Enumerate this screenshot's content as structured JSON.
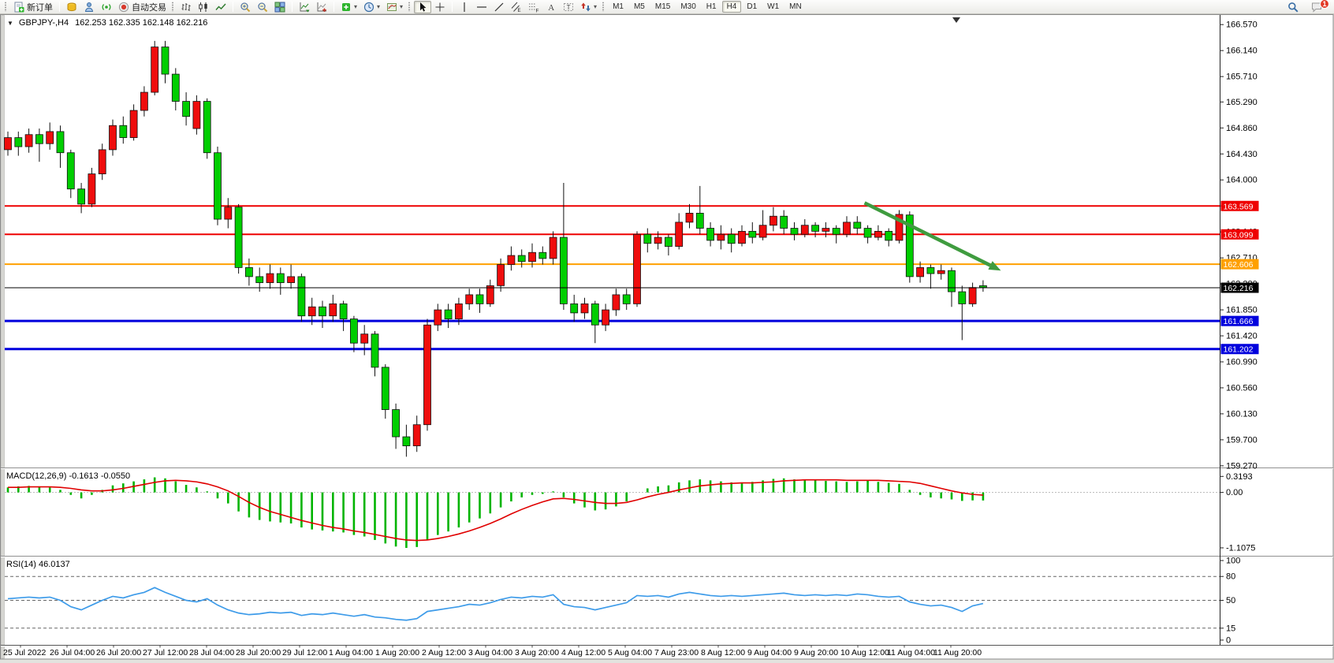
{
  "toolbar": {
    "groups": [
      {
        "grip": true,
        "items": [
          {
            "icon": "new-order-icon",
            "name": "new-order-button",
            "label": "新订单"
          }
        ]
      },
      {
        "items": [
          {
            "icon": "market-watch-icon",
            "name": "market-watch-button"
          },
          {
            "icon": "navigator-icon",
            "name": "navigator-button"
          },
          {
            "icon": "signals-icon",
            "name": "signals-button"
          },
          {
            "icon": "auto-trading-icon",
            "name": "auto-trading-button",
            "label": "自动交易"
          }
        ]
      },
      {
        "grip": true,
        "items": [
          {
            "icon": "bar-chart-icon",
            "name": "bar-chart-button"
          },
          {
            "icon": "candlestick-icon",
            "name": "candlestick-chart-button"
          },
          {
            "icon": "line-chart-icon",
            "name": "line-chart-button"
          }
        ]
      },
      {
        "items": [
          {
            "icon": "zoom-in-icon",
            "name": "zoom-in-button"
          },
          {
            "icon": "zoom-out-icon",
            "name": "zoom-out-button"
          },
          {
            "icon": "tile-windows-icon",
            "name": "tile-windows-button"
          }
        ]
      },
      {
        "items": [
          {
            "icon": "indicators-icon",
            "name": "indicators-button"
          },
          {
            "icon": "objects-icon",
            "name": "objects-list-button"
          }
        ]
      },
      {
        "items": [
          {
            "icon": "add-indicator-icon",
            "name": "add-indicator-dropdown",
            "dropdown": true
          },
          {
            "icon": "periods-icon",
            "name": "periods-dropdown",
            "dropdown": true
          },
          {
            "icon": "template-icon",
            "name": "template-dropdown",
            "dropdown": true
          }
        ]
      },
      {
        "grip": true,
        "items": [
          {
            "icon": "cursor-icon",
            "name": "cursor-button",
            "active": true
          },
          {
            "icon": "crosshair-icon",
            "name": "crosshair-button"
          }
        ]
      },
      {
        "items": [
          {
            "icon": "vertical-line-icon",
            "name": "vertical-line-button"
          },
          {
            "icon": "horizontal-line-icon",
            "name": "horizontal-line-button"
          },
          {
            "icon": "trendline-icon",
            "name": "trendline-button"
          },
          {
            "icon": "channel-icon",
            "name": "equidistant-channel-button"
          },
          {
            "icon": "fibonacci-icon",
            "name": "fibonacci-button"
          },
          {
            "icon": "text-icon",
            "name": "text-button"
          },
          {
            "icon": "text-label-icon",
            "name": "text-label-button"
          },
          {
            "icon": "arrows-icon",
            "name": "arrows-dropdown",
            "dropdown": true
          }
        ]
      }
    ],
    "timeframes": [
      "M1",
      "M5",
      "M15",
      "M30",
      "H1",
      "H4",
      "D1",
      "W1",
      "MN"
    ],
    "active_timeframe": "H4",
    "right": [
      {
        "icon": "search-icon",
        "name": "search-button"
      },
      {
        "icon": "chat-icon",
        "name": "chat-button",
        "badge": "1"
      }
    ]
  },
  "chart": {
    "symbol_period": "GBPJPY-,H4",
    "ohlc": "162.253 162.335 162.148 162.216",
    "macd_label": "MACD(12,26,9) -0.1613 -0.0550",
    "rsi_label": "RSI(14) 46.0137"
  },
  "chart_data": {
    "type": "candlestick",
    "symbol": "GBPJPY-",
    "timeframe": "H4",
    "ohlc_display": {
      "open": "162.253",
      "high": "162.335",
      "low": "162.148",
      "close": "162.216"
    },
    "price_axis": {
      "ticks": [
        166.57,
        166.14,
        165.71,
        165.29,
        164.86,
        164.43,
        164.0,
        163.57,
        163.14,
        162.71,
        162.28,
        161.85,
        161.42,
        160.99,
        160.56,
        160.13,
        159.7,
        159.27
      ]
    },
    "hlines": [
      {
        "price": 163.569,
        "label": "163.569",
        "color": "#ee0000",
        "width": 2
      },
      {
        "price": 163.099,
        "label": "163.099",
        "color": "#ee0000",
        "width": 2
      },
      {
        "price": 162.606,
        "label": "162.606",
        "color": "#ffa000",
        "width": 2
      },
      {
        "price": 161.666,
        "label": "161.666",
        "color": "#0000dd",
        "width": 3
      },
      {
        "price": 161.202,
        "label": "161.202",
        "color": "#0000dd",
        "width": 3
      }
    ],
    "current_price": {
      "value": 162.216,
      "label": "162.216",
      "tag_color": "#000000"
    },
    "arrow": {
      "from_bar": 81.7,
      "from_price": 163.62,
      "to_bar": 94.7,
      "to_price": 162.5,
      "color": "#3f9c3f"
    },
    "colors": {
      "up": "#ef0d0d",
      "down": "#00ce00",
      "outline": "#111111",
      "macd_hist": "#00b400",
      "macd_signal": "#e00000",
      "rsi_line": "#3d9be9"
    },
    "candles": [
      [
        164.5,
        164.8,
        164.4,
        164.7
      ],
      [
        164.7,
        164.8,
        164.4,
        164.55
      ],
      [
        164.55,
        164.85,
        164.45,
        164.75
      ],
      [
        164.75,
        164.85,
        164.3,
        164.6
      ],
      [
        164.6,
        164.95,
        164.5,
        164.8
      ],
      [
        164.8,
        164.9,
        164.2,
        164.45
      ],
      [
        164.45,
        164.5,
        163.7,
        163.85
      ],
      [
        163.85,
        163.95,
        163.45,
        163.6
      ],
      [
        163.6,
        164.2,
        163.55,
        164.1
      ],
      [
        164.1,
        164.6,
        164.0,
        164.5
      ],
      [
        164.5,
        165.0,
        164.4,
        164.9
      ],
      [
        164.9,
        165.05,
        164.6,
        164.7
      ],
      [
        164.7,
        165.25,
        164.65,
        165.15
      ],
      [
        165.15,
        165.55,
        165.05,
        165.45
      ],
      [
        165.45,
        166.3,
        165.4,
        166.2
      ],
      [
        166.2,
        166.3,
        165.6,
        165.75
      ],
      [
        165.75,
        165.85,
        165.15,
        165.3
      ],
      [
        165.3,
        165.45,
        164.9,
        165.05
      ],
      [
        164.85,
        165.4,
        164.75,
        165.3
      ],
      [
        165.3,
        165.35,
        164.35,
        164.45
      ],
      [
        164.45,
        164.55,
        163.25,
        163.35
      ],
      [
        163.35,
        163.7,
        163.2,
        163.55
      ],
      [
        163.55,
        163.6,
        162.45,
        162.55
      ],
      [
        162.55,
        162.7,
        162.25,
        162.4
      ],
      [
        162.4,
        162.55,
        162.15,
        162.3
      ],
      [
        162.3,
        162.6,
        162.2,
        162.45
      ],
      [
        162.45,
        162.55,
        162.1,
        162.3
      ],
      [
        162.3,
        162.6,
        162.2,
        162.4
      ],
      [
        162.4,
        162.45,
        161.65,
        161.75
      ],
      [
        161.75,
        162.05,
        161.6,
        161.9
      ],
      [
        161.9,
        162.0,
        161.55,
        161.75
      ],
      [
        161.75,
        162.1,
        161.65,
        161.95
      ],
      [
        161.95,
        162.0,
        161.5,
        161.7
      ],
      [
        161.7,
        161.75,
        161.15,
        161.3
      ],
      [
        161.3,
        161.6,
        161.1,
        161.45
      ],
      [
        161.45,
        161.5,
        160.75,
        160.9
      ],
      [
        160.9,
        160.95,
        160.05,
        160.2
      ],
      [
        160.2,
        160.3,
        159.55,
        159.75
      ],
      [
        159.75,
        159.95,
        159.42,
        159.6
      ],
      [
        159.6,
        160.1,
        159.5,
        159.95
      ],
      [
        159.95,
        161.7,
        159.85,
        161.6
      ],
      [
        161.6,
        161.95,
        161.5,
        161.85
      ],
      [
        161.85,
        161.95,
        161.55,
        161.7
      ],
      [
        161.7,
        162.05,
        161.6,
        161.95
      ],
      [
        161.95,
        162.2,
        161.85,
        162.1
      ],
      [
        162.1,
        162.2,
        161.8,
        161.95
      ],
      [
        161.95,
        162.35,
        161.9,
        162.25
      ],
      [
        162.25,
        162.7,
        162.15,
        162.6
      ],
      [
        162.6,
        162.9,
        162.5,
        162.75
      ],
      [
        162.75,
        162.85,
        162.55,
        162.65
      ],
      [
        162.65,
        162.95,
        162.55,
        162.8
      ],
      [
        162.8,
        162.9,
        162.6,
        162.7
      ],
      [
        162.7,
        163.15,
        162.6,
        163.05
      ],
      [
        163.05,
        163.95,
        161.85,
        161.95
      ],
      [
        161.95,
        162.1,
        161.65,
        161.8
      ],
      [
        161.8,
        162.05,
        161.7,
        161.95
      ],
      [
        161.95,
        162.0,
        161.3,
        161.6
      ],
      [
        161.6,
        161.95,
        161.5,
        161.85
      ],
      [
        161.85,
        162.2,
        161.75,
        162.1
      ],
      [
        162.1,
        162.2,
        161.85,
        161.95
      ],
      [
        161.95,
        163.15,
        161.9,
        163.1
      ],
      [
        163.1,
        163.2,
        162.8,
        162.95
      ],
      [
        162.95,
        163.15,
        162.85,
        163.05
      ],
      [
        163.05,
        163.1,
        162.75,
        162.9
      ],
      [
        162.9,
        163.45,
        162.85,
        163.3
      ],
      [
        163.3,
        163.6,
        163.2,
        163.45
      ],
      [
        163.45,
        163.9,
        163.1,
        163.2
      ],
      [
        163.2,
        163.3,
        162.9,
        163.0
      ],
      [
        163.0,
        163.25,
        162.85,
        163.1
      ],
      [
        163.1,
        163.2,
        162.8,
        162.95
      ],
      [
        162.95,
        163.25,
        162.9,
        163.15
      ],
      [
        163.15,
        163.3,
        162.95,
        163.05
      ],
      [
        163.05,
        163.5,
        163.0,
        163.25
      ],
      [
        163.25,
        163.55,
        163.15,
        163.4
      ],
      [
        163.4,
        163.5,
        163.1,
        163.2
      ],
      [
        163.2,
        163.3,
        163.0,
        163.1
      ],
      [
        163.1,
        163.35,
        163.05,
        163.25
      ],
      [
        163.25,
        163.3,
        163.05,
        163.15
      ],
      [
        163.15,
        163.3,
        163.05,
        163.2
      ],
      [
        163.2,
        163.25,
        162.95,
        163.1
      ],
      [
        163.1,
        163.4,
        163.05,
        163.3
      ],
      [
        163.3,
        163.4,
        163.1,
        163.2
      ],
      [
        163.2,
        163.25,
        162.95,
        163.05
      ],
      [
        163.05,
        163.25,
        163.0,
        163.15
      ],
      [
        163.15,
        163.2,
        162.9,
        163.0
      ],
      [
        163.0,
        163.5,
        162.95,
        163.43
      ],
      [
        163.42,
        163.48,
        162.3,
        162.4
      ],
      [
        162.4,
        162.65,
        162.3,
        162.55
      ],
      [
        162.55,
        162.6,
        162.2,
        162.45
      ],
      [
        162.45,
        162.6,
        162.35,
        162.5
      ],
      [
        162.5,
        162.55,
        161.9,
        162.15
      ],
      [
        162.15,
        162.25,
        161.35,
        161.95
      ],
      [
        161.95,
        162.3,
        161.9,
        162.22
      ],
      [
        162.25,
        162.34,
        162.15,
        162.22
      ]
    ],
    "time_axis": {
      "labels": [
        "25 Jul 2022",
        "26 Jul 04:00",
        "26 Jul 20:00",
        "27 Jul 12:00",
        "28 Jul 04:00",
        "28 Jul 20:00",
        "29 Jul 12:00",
        "1 Aug 04:00",
        "1 Aug 20:00",
        "2 Aug 12:00",
        "3 Aug 04:00",
        "3 Aug 20:00",
        "4 Aug 12:00",
        "5 Aug 04:00",
        "7 Aug 23:00",
        "8 Aug 12:00",
        "9 Aug 04:00",
        "9 Aug 20:00",
        "10 Aug 12:00",
        "11 Aug 04:00",
        "11 Aug 20:00"
      ]
    },
    "macd": {
      "name": "MACD(12,26,9)",
      "values_label": "-0.1613 -0.0550",
      "ticks": [
        {
          "label": "0.3193",
          "value": 0.3193
        },
        {
          "label": "0.00",
          "value": 0
        },
        {
          "label": "-1.1075",
          "value": -1.1075
        }
      ],
      "hist": [
        0.1,
        0.12,
        0.13,
        0.12,
        0.1,
        0.05,
        -0.05,
        -0.12,
        -0.05,
        0.05,
        0.14,
        0.18,
        0.22,
        0.26,
        0.3,
        0.28,
        0.22,
        0.15,
        0.1,
        0.02,
        -0.12,
        -0.22,
        -0.38,
        -0.5,
        -0.55,
        -0.58,
        -0.6,
        -0.62,
        -0.7,
        -0.74,
        -0.76,
        -0.78,
        -0.8,
        -0.85,
        -0.88,
        -0.95,
        -1.02,
        -1.08,
        -1.1075,
        -1.09,
        -0.95,
        -0.85,
        -0.78,
        -0.7,
        -0.6,
        -0.52,
        -0.42,
        -0.3,
        -0.18,
        -0.1,
        -0.05,
        -0.03,
        0.02,
        -0.1,
        -0.22,
        -0.3,
        -0.36,
        -0.34,
        -0.28,
        -0.18,
        0.0,
        0.08,
        0.12,
        0.14,
        0.2,
        0.24,
        0.26,
        0.24,
        0.22,
        0.2,
        0.2,
        0.21,
        0.24,
        0.27,
        0.28,
        0.26,
        0.24,
        0.24,
        0.23,
        0.22,
        0.21,
        0.22,
        0.23,
        0.21,
        0.19,
        0.17,
        0.05,
        -0.05,
        -0.1,
        -0.12,
        -0.14,
        -0.17,
        -0.16,
        -0.1613
      ],
      "signal": [
        0.1,
        0.1,
        0.11,
        0.11,
        0.11,
        0.1,
        0.08,
        0.05,
        0.03,
        0.03,
        0.05,
        0.08,
        0.12,
        0.16,
        0.2,
        0.23,
        0.24,
        0.23,
        0.21,
        0.17,
        0.11,
        0.03,
        -0.08,
        -0.2,
        -0.3,
        -0.38,
        -0.44,
        -0.5,
        -0.56,
        -0.61,
        -0.66,
        -0.7,
        -0.73,
        -0.77,
        -0.8,
        -0.84,
        -0.88,
        -0.92,
        -0.95,
        -0.96,
        -0.95,
        -0.92,
        -0.88,
        -0.83,
        -0.77,
        -0.7,
        -0.62,
        -0.53,
        -0.43,
        -0.34,
        -0.26,
        -0.19,
        -0.13,
        -0.12,
        -0.14,
        -0.17,
        -0.2,
        -0.22,
        -0.22,
        -0.2,
        -0.15,
        -0.09,
        -0.04,
        0.0,
        0.05,
        0.09,
        0.13,
        0.15,
        0.17,
        0.18,
        0.19,
        0.19,
        0.2,
        0.21,
        0.23,
        0.24,
        0.25,
        0.25,
        0.25,
        0.25,
        0.24,
        0.24,
        0.24,
        0.24,
        0.23,
        0.22,
        0.21,
        0.18,
        0.13,
        0.08,
        0.03,
        -0.01,
        -0.04,
        -0.055
      ]
    },
    "rsi": {
      "name": "RSI(14)",
      "value_label": "46.0137",
      "ticks": [
        {
          "label": "100",
          "value": 100
        },
        {
          "label": "80",
          "value": 80,
          "dashed": true
        },
        {
          "label": "50",
          "value": 50,
          "dashed": true
        },
        {
          "label": "15",
          "value": 15,
          "dashed": true
        },
        {
          "label": "0",
          "value": 0
        }
      ],
      "values": [
        52,
        53,
        54,
        53,
        54,
        50,
        42,
        38,
        44,
        50,
        55,
        53,
        57,
        60,
        66,
        60,
        55,
        50,
        48,
        52,
        44,
        38,
        34,
        32,
        33,
        35,
        34,
        35,
        31,
        33,
        32,
        34,
        32,
        30,
        32,
        29,
        28,
        26,
        25,
        27,
        36,
        38,
        40,
        42,
        45,
        44,
        47,
        51,
        54,
        53,
        55,
        54,
        57,
        45,
        42,
        41,
        38,
        41,
        44,
        47,
        56,
        55,
        56,
        54,
        58,
        60,
        58,
        56,
        55,
        56,
        55,
        56,
        57,
        58,
        59,
        57,
        56,
        57,
        56,
        57,
        56,
        58,
        57,
        55,
        54,
        55,
        48,
        45,
        43,
        44,
        41,
        36,
        43,
        46
      ]
    }
  }
}
